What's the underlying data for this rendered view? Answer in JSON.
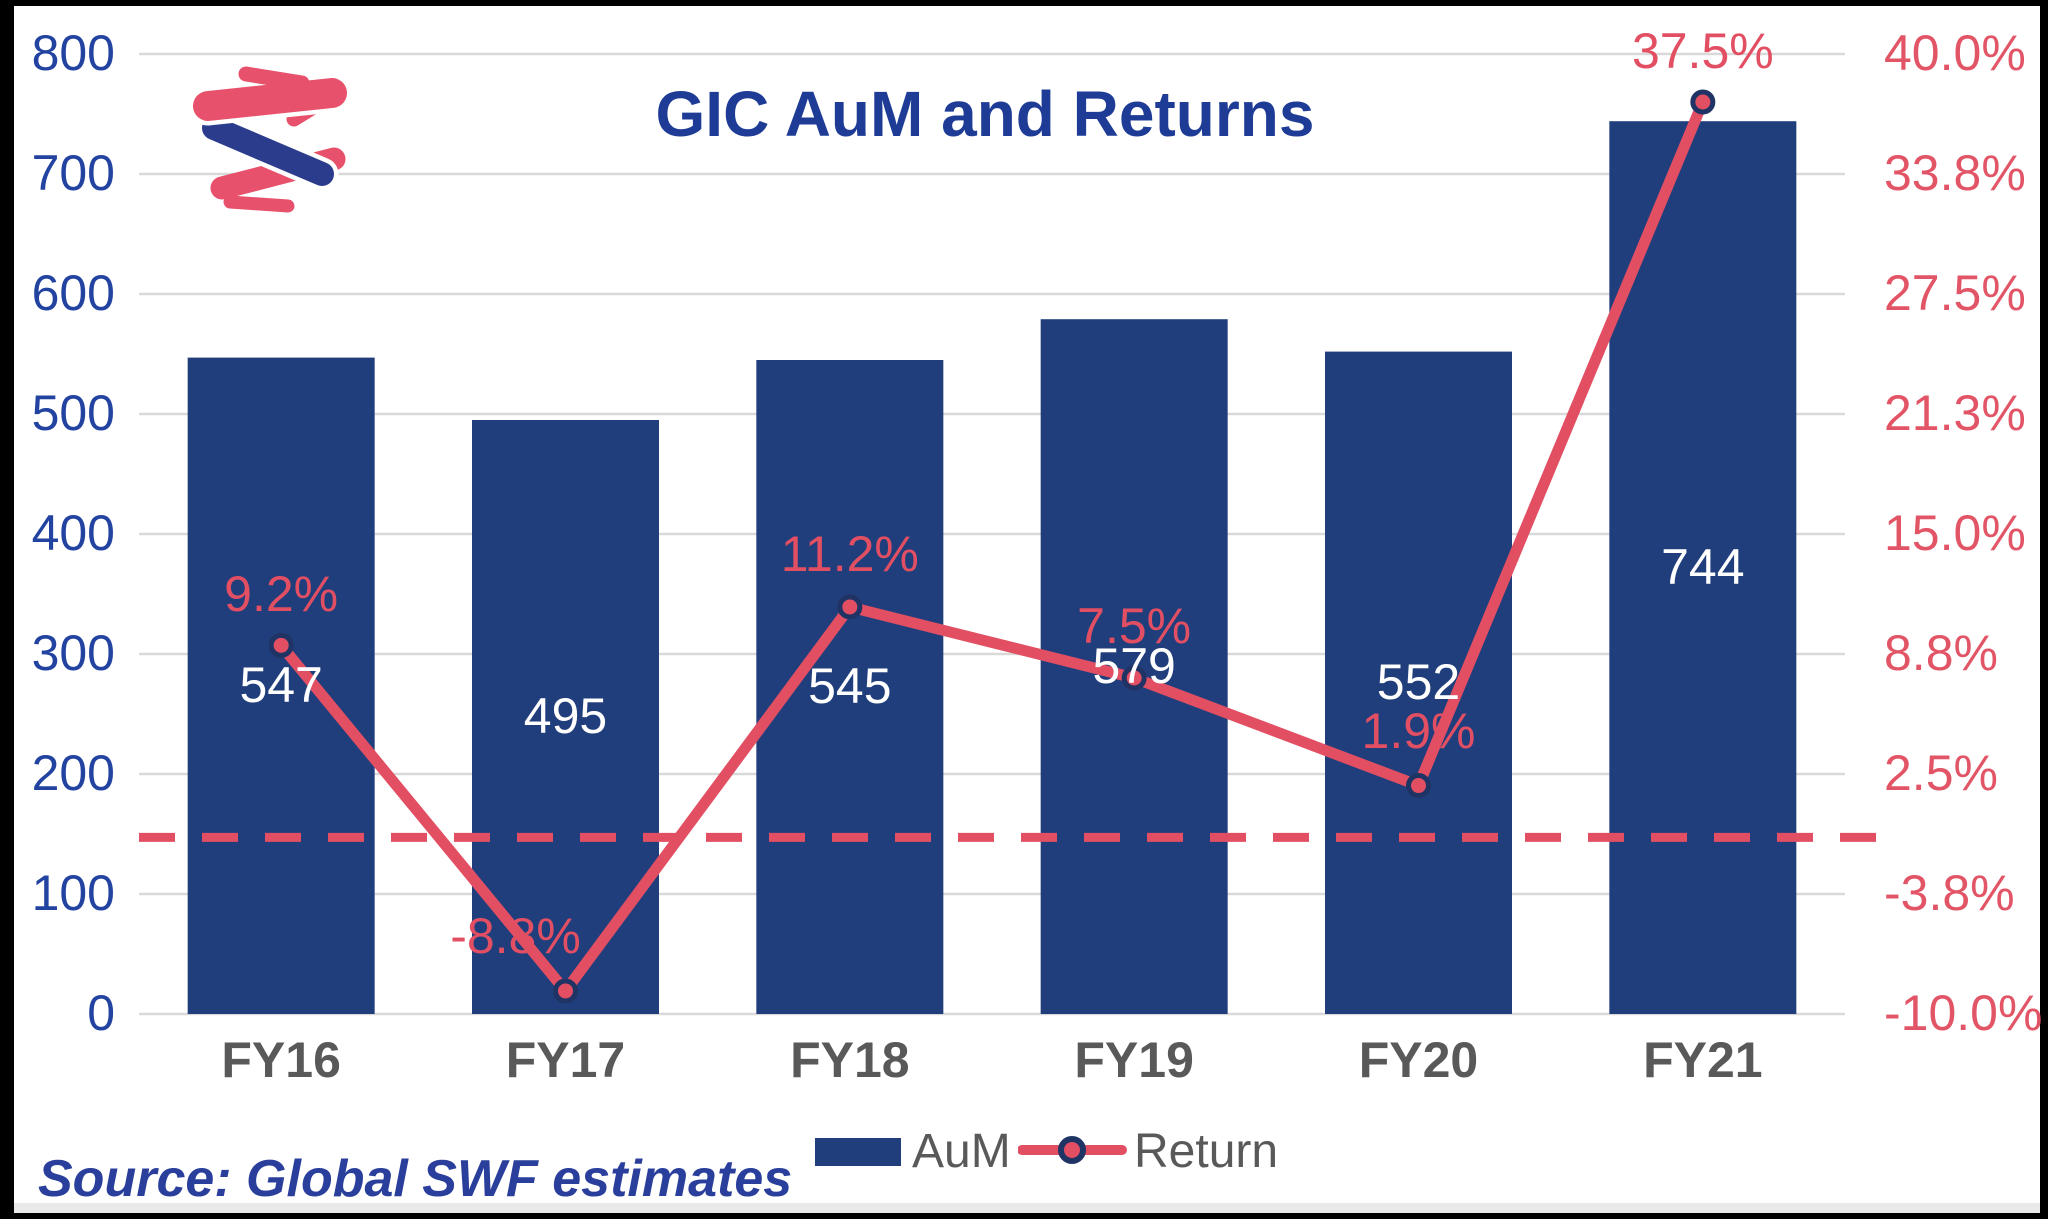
{
  "page": {
    "title": "GIC AuM and Returns",
    "source": "Source: Global SWF estimates"
  },
  "legend": {
    "aum_label": "AuM",
    "return_label": "Return",
    "position": "bottom"
  },
  "colors": {
    "bar_navy": "#213E7C",
    "line_red": "#E24F63",
    "right_tick_red": "#E25566",
    "left_tick_blue": "#2243A0",
    "title_blue": "#1E3C96",
    "source_blue": "#2A3F9B",
    "category_gray": "#595959",
    "gridline_gray": "#D9D9D9",
    "bar_value_white": "#FFFFFF",
    "marker_ring_navy": "#1F3464",
    "logo_red": "#E8516B",
    "logo_navy": "#2B3C8C",
    "frame_black": "#000000",
    "frame_gray": "#E9E9E9"
  },
  "chart_data": {
    "type": "bar+line combo",
    "title": "GIC AuM and Returns",
    "categories": [
      "FY16",
      "FY17",
      "FY18",
      "FY19",
      "FY20",
      "FY21"
    ],
    "series": [
      {
        "name": "AuM",
        "type": "bar",
        "axis": "left",
        "values": [
          547,
          495,
          545,
          579,
          552,
          744
        ],
        "data_labels": [
          "547",
          "495",
          "545",
          "579",
          "552",
          "744"
        ]
      },
      {
        "name": "Return",
        "type": "line",
        "axis": "right",
        "values": [
          9.2,
          -8.8,
          11.2,
          7.5,
          1.9,
          37.5
        ],
        "data_labels": [
          "9.2%",
          "-8.8%",
          "11.2%",
          "7.5%",
          "1.9%",
          "37.5%"
        ],
        "label_dx": [
          0,
          -50,
          0,
          0,
          0,
          0
        ],
        "label_dy": [
          -50,
          -54,
          -52,
          -51,
          -54,
          -50
        ]
      }
    ],
    "left_axis": {
      "min": 0,
      "max": 800,
      "step": 100,
      "ticks": [
        "0",
        "100",
        "200",
        "300",
        "400",
        "500",
        "600",
        "700",
        "800"
      ]
    },
    "right_axis": {
      "min": -10,
      "max": 40,
      "step": 6.25,
      "ticks": [
        "-10.0%",
        "-3.8%",
        "2.5%",
        "8.8%",
        "15.0%",
        "21.3%",
        "27.5%",
        "33.8%",
        "40.0%"
      ]
    },
    "reference_line": {
      "axis": "right",
      "value": -0.8,
      "style": "dashed",
      "color": "#E24F63"
    },
    "grid": true,
    "legend_position": "bottom"
  }
}
